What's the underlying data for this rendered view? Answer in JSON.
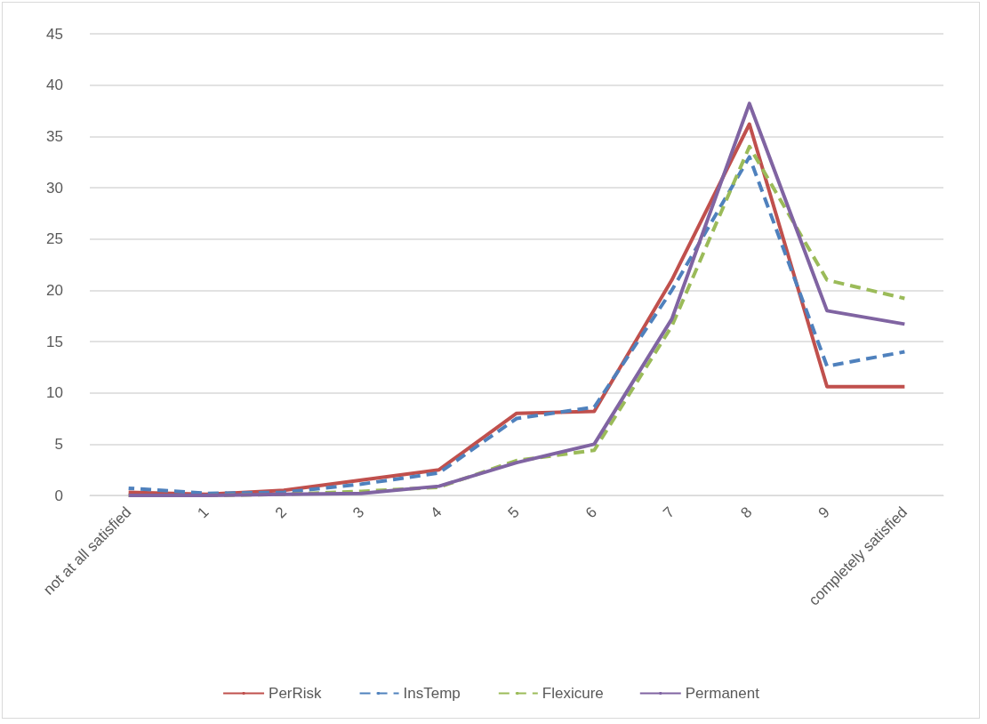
{
  "chart_data": {
    "type": "line",
    "categories": [
      "not at all satisfied",
      "1",
      "2",
      "3",
      "4",
      "5",
      "6",
      "7",
      "8",
      "9",
      "completely satisfied"
    ],
    "series": [
      {
        "name": "PerRisk",
        "color": "#c0504d",
        "line_style": "solid",
        "values": [
          0.3,
          0.1,
          0.5,
          1.5,
          2.5,
          8.0,
          8.2,
          21,
          36.2,
          10.6,
          10.6
        ]
      },
      {
        "name": "InsTemp",
        "color": "#4f81bd",
        "line_style": "dashed",
        "values": [
          0.7,
          0.2,
          0.3,
          1.1,
          2.2,
          7.5,
          8.6,
          20,
          33,
          12.6,
          14.0
        ]
      },
      {
        "name": "Flexicure",
        "color": "#9bbb59",
        "line_style": "dashed",
        "values": [
          0,
          0,
          0.1,
          0.4,
          0.8,
          3.4,
          4.4,
          16.5,
          34,
          21,
          19.2
        ]
      },
      {
        "name": "Permanent",
        "color": "#8064a2",
        "line_style": "solid",
        "values": [
          0,
          0,
          0.1,
          0.2,
          0.9,
          3.2,
          5,
          17.2,
          38.2,
          18,
          16.7
        ]
      }
    ],
    "ylim": [
      0,
      45
    ],
    "yticks": [
      0,
      5,
      10,
      15,
      20,
      25,
      30,
      35,
      40,
      45
    ],
    "grid": "y",
    "legend": "bottom",
    "marker": "none"
  }
}
